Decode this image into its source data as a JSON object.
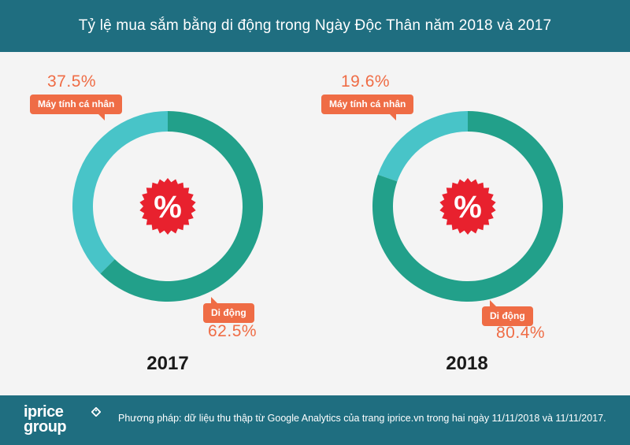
{
  "header": {
    "title": "Tỷ lệ mua sắm bằng di động trong Ngày Độc Thân năm 2018 và 2017"
  },
  "footer": {
    "logo_line1": "iprice",
    "logo_line2": "group",
    "note": "Phương pháp: dữ liệu thu thập từ Google Analytics của trang iprice.vn trong hai ngày 11/11/2018 và 11/11/2017."
  },
  "colors": {
    "header_bg": "#1f6e80",
    "mobile": "#22a08a",
    "desktop": "#48c4c8",
    "accent": "#ef6c45",
    "badge": "#e8212e"
  },
  "icons": {
    "center": "percent-badge-icon",
    "logo": "tag-icon"
  },
  "chart_data": [
    {
      "type": "pie",
      "title": "2017",
      "labels": [
        "Máy tính cá nhân",
        "Di động"
      ],
      "values": [
        37.5,
        62.5
      ],
      "value_labels": [
        "37.5%",
        "62.5%"
      ],
      "center_text": "%"
    },
    {
      "type": "pie",
      "title": "2018",
      "labels": [
        "Máy tính cá nhân",
        "Di động"
      ],
      "values": [
        19.6,
        80.4
      ],
      "value_labels": [
        "19.6%",
        "80.4%"
      ],
      "center_text": "%"
    }
  ]
}
